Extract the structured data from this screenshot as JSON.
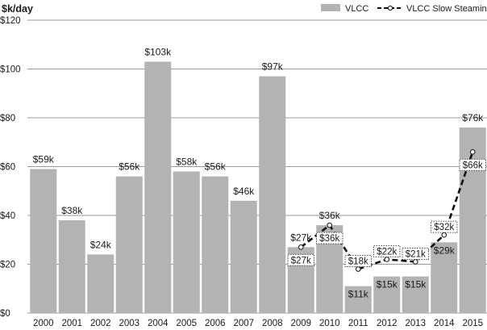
{
  "chart_data": {
    "type": "bar",
    "title": "",
    "ylabel": "$k/day",
    "xlabel": "",
    "ylim": [
      0,
      120
    ],
    "yticks": [
      0,
      20,
      40,
      60,
      80,
      100,
      120
    ],
    "ytick_labels": [
      "$0",
      "$20",
      "$40",
      "$60",
      "$80",
      "$100",
      "$120"
    ],
    "categories": [
      "2000",
      "2001",
      "2002",
      "2003",
      "2004",
      "2005",
      "2006",
      "2007",
      "2008",
      "2009",
      "2010",
      "2011",
      "2012",
      "2013",
      "2014",
      "2015"
    ],
    "legend_position": "top-right",
    "series": [
      {
        "name": "VLCC",
        "kind": "bar",
        "color": "#b3b3b3",
        "values": [
          59,
          38,
          24,
          56,
          103,
          58,
          56,
          46,
          97,
          27,
          36,
          11,
          15,
          15,
          29,
          76
        ],
        "labels": [
          "$59k",
          "$38k",
          "$24k",
          "$56k",
          "$103k",
          "$58k",
          "$56k",
          "$46k",
          "$97k",
          "$27k",
          "$36k",
          "$11k",
          "$15k",
          "$15k",
          "$29k",
          "$76k"
        ]
      },
      {
        "name": "VLCC Slow Steaming",
        "kind": "line",
        "style": "dashed",
        "color": "#111111",
        "x": [
          "2009",
          "2010",
          "2011",
          "2012",
          "2013",
          "2014",
          "2015"
        ],
        "values": [
          27,
          36,
          18,
          22,
          21,
          32,
          66
        ],
        "labels": [
          "$27k",
          "$36k",
          "$18k",
          "$22k",
          "$21k",
          "$32k",
          "$66k"
        ]
      }
    ]
  }
}
